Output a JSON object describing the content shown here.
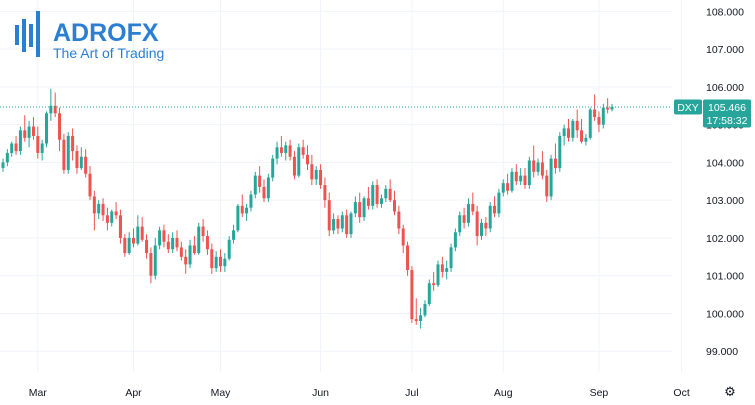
{
  "logo": {
    "wordmark": "ADROFX",
    "tagline": "The Art of Trading"
  },
  "colors": {
    "up": "#26a69a",
    "down": "#ef5350",
    "grid": "#f0f3fa",
    "last_price_line": "#26a69a",
    "logo": "#2a7fd4"
  },
  "settings_icon": "gear-icon",
  "price_badge": {
    "symbol": "DXY",
    "price": "105.466",
    "countdown": "17:58:32"
  },
  "chart_data": {
    "type": "candlestick",
    "title": "",
    "xlabel": "",
    "ylabel": "",
    "y_axis_position": "right",
    "ylim": [
      98.45,
      108.3
    ],
    "y_ticks": [
      99.0,
      100.0,
      101.0,
      102.0,
      103.0,
      104.0,
      105.0,
      106.0,
      107.0,
      108.0
    ],
    "y_tick_labels": [
      "99.000",
      "100.000",
      "101.000",
      "102.000",
      "103.000",
      "104.000",
      "105.000",
      "106.000",
      "107.000",
      "108.000"
    ],
    "x_months": [
      {
        "label": "Mar",
        "index": 8
      },
      {
        "label": "Apr",
        "index": 30
      },
      {
        "label": "May",
        "index": 50
      },
      {
        "label": "Jun",
        "index": 73
      },
      {
        "label": "Jul",
        "index": 94
      },
      {
        "label": "Aug",
        "index": 115
      },
      {
        "label": "Sep",
        "index": 137
      },
      {
        "label": "Oct",
        "index": 156
      }
    ],
    "grid": true,
    "last_price": 105.466,
    "candles": [
      [
        103.85,
        104.1,
        103.75,
        104.0
      ],
      [
        104.0,
        104.35,
        103.9,
        104.25
      ],
      [
        104.25,
        104.55,
        104.15,
        104.5
      ],
      [
        104.5,
        104.7,
        104.2,
        104.3
      ],
      [
        104.3,
        104.95,
        104.2,
        104.85
      ],
      [
        104.85,
        105.25,
        104.55,
        104.65
      ],
      [
        104.65,
        105.1,
        104.4,
        104.95
      ],
      [
        104.95,
        105.2,
        104.6,
        104.7
      ],
      [
        104.7,
        104.95,
        104.1,
        104.25
      ],
      [
        104.25,
        104.6,
        104.05,
        104.5
      ],
      [
        104.5,
        105.35,
        104.4,
        105.3
      ],
      [
        105.3,
        105.95,
        105.1,
        105.5
      ],
      [
        105.5,
        105.85,
        105.2,
        105.3
      ],
      [
        105.3,
        105.45,
        104.3,
        104.6
      ],
      [
        104.6,
        104.75,
        103.7,
        103.8
      ],
      [
        103.8,
        104.8,
        103.7,
        104.7
      ],
      [
        104.7,
        104.9,
        104.05,
        104.3
      ],
      [
        104.3,
        104.45,
        103.7,
        103.85
      ],
      [
        103.85,
        104.4,
        103.8,
        104.15
      ],
      [
        104.15,
        104.35,
        103.6,
        103.7
      ],
      [
        103.7,
        103.9,
        103.0,
        103.1
      ],
      [
        103.1,
        103.25,
        102.2,
        102.65
      ],
      [
        102.65,
        103.0,
        102.5,
        102.9
      ],
      [
        102.9,
        103.05,
        102.45,
        102.6
      ],
      [
        102.6,
        102.8,
        102.2,
        102.4
      ],
      [
        102.4,
        102.75,
        102.3,
        102.7
      ],
      [
        102.7,
        102.95,
        102.5,
        102.6
      ],
      [
        102.6,
        102.75,
        101.85,
        102.0
      ],
      [
        102.0,
        102.1,
        101.5,
        101.6
      ],
      [
        101.6,
        102.15,
        101.55,
        102.0
      ],
      [
        102.0,
        102.25,
        101.75,
        101.85
      ],
      [
        101.85,
        102.6,
        101.8,
        102.3
      ],
      [
        102.3,
        102.55,
        101.9,
        101.95
      ],
      [
        101.95,
        102.1,
        101.45,
        101.6
      ],
      [
        101.6,
        101.75,
        100.8,
        101.0
      ],
      [
        101.0,
        102.0,
        100.9,
        101.8
      ],
      [
        101.8,
        102.3,
        101.7,
        102.2
      ],
      [
        102.2,
        102.35,
        101.75,
        101.9
      ],
      [
        101.9,
        102.1,
        101.6,
        101.7
      ],
      [
        101.7,
        102.15,
        101.6,
        102.0
      ],
      [
        102.0,
        102.2,
        101.65,
        101.75
      ],
      [
        101.75,
        101.9,
        101.4,
        101.5
      ],
      [
        101.5,
        101.7,
        101.05,
        101.3
      ],
      [
        101.3,
        101.95,
        101.2,
        101.8
      ],
      [
        101.8,
        102.05,
        101.55,
        101.6
      ],
      [
        101.6,
        102.4,
        101.55,
        102.3
      ],
      [
        102.3,
        102.5,
        101.9,
        102.05
      ],
      [
        102.05,
        102.2,
        101.55,
        101.7
      ],
      [
        101.7,
        101.85,
        101.05,
        101.2
      ],
      [
        101.2,
        101.65,
        101.1,
        101.5
      ],
      [
        101.5,
        101.7,
        101.1,
        101.25
      ],
      [
        101.25,
        101.6,
        101.1,
        101.45
      ],
      [
        101.45,
        102.05,
        101.4,
        101.95
      ],
      [
        101.95,
        102.35,
        101.85,
        102.2
      ],
      [
        102.2,
        102.9,
        102.15,
        102.85
      ],
      [
        102.85,
        103.15,
        102.55,
        102.65
      ],
      [
        102.65,
        102.9,
        102.45,
        102.8
      ],
      [
        102.8,
        103.25,
        102.7,
        103.15
      ],
      [
        103.15,
        103.75,
        103.05,
        103.65
      ],
      [
        103.65,
        103.9,
        103.2,
        103.35
      ],
      [
        103.35,
        103.55,
        102.95,
        103.05
      ],
      [
        103.05,
        103.7,
        102.95,
        103.6
      ],
      [
        103.6,
        104.2,
        103.5,
        104.1
      ],
      [
        104.1,
        104.55,
        103.95,
        104.4
      ],
      [
        104.4,
        104.7,
        104.15,
        104.25
      ],
      [
        104.25,
        104.55,
        104.05,
        104.45
      ],
      [
        104.45,
        104.6,
        104.05,
        104.15
      ],
      [
        104.15,
        104.3,
        103.55,
        103.65
      ],
      [
        103.65,
        104.5,
        103.6,
        104.4
      ],
      [
        104.4,
        104.6,
        104.1,
        104.2
      ],
      [
        104.2,
        104.45,
        103.8,
        103.95
      ],
      [
        103.95,
        104.2,
        103.4,
        103.55
      ],
      [
        103.55,
        103.9,
        103.4,
        103.8
      ],
      [
        103.8,
        103.95,
        103.3,
        103.4
      ],
      [
        103.4,
        103.6,
        102.8,
        103.0
      ],
      [
        103.0,
        103.2,
        102.05,
        102.2
      ],
      [
        102.2,
        102.65,
        102.1,
        102.5
      ],
      [
        102.5,
        102.6,
        102.1,
        102.25
      ],
      [
        102.25,
        102.7,
        102.15,
        102.6
      ],
      [
        102.6,
        102.75,
        102.0,
        102.1
      ],
      [
        102.1,
        102.7,
        102.0,
        102.65
      ],
      [
        102.65,
        103.1,
        102.55,
        102.95
      ],
      [
        102.95,
        103.2,
        102.4,
        102.55
      ],
      [
        102.55,
        103.1,
        102.45,
        103.05
      ],
      [
        103.05,
        103.35,
        102.75,
        102.85
      ],
      [
        102.85,
        103.5,
        102.75,
        103.4
      ],
      [
        103.4,
        103.55,
        102.8,
        102.9
      ],
      [
        102.9,
        103.15,
        102.8,
        103.05
      ],
      [
        103.05,
        103.4,
        102.95,
        103.3
      ],
      [
        103.3,
        103.55,
        102.95,
        103.0
      ],
      [
        103.0,
        103.25,
        102.6,
        102.7
      ],
      [
        102.7,
        102.85,
        102.1,
        102.25
      ],
      [
        102.25,
        102.35,
        101.6,
        101.8
      ],
      [
        101.8,
        101.9,
        101.0,
        101.15
      ],
      [
        101.15,
        101.25,
        99.75,
        99.85
      ],
      [
        99.85,
        100.4,
        99.7,
        99.8
      ],
      [
        99.8,
        100.15,
        99.6,
        99.95
      ],
      [
        99.95,
        100.35,
        99.9,
        100.25
      ],
      [
        100.25,
        100.9,
        100.2,
        100.8
      ],
      [
        100.8,
        101.1,
        100.6,
        100.75
      ],
      [
        100.75,
        101.4,
        100.7,
        101.3
      ],
      [
        101.3,
        101.5,
        100.95,
        101.1
      ],
      [
        101.1,
        101.4,
        100.9,
        101.2
      ],
      [
        101.2,
        101.85,
        101.1,
        101.75
      ],
      [
        101.75,
        102.25,
        101.65,
        102.15
      ],
      [
        102.15,
        102.7,
        102.05,
        102.6
      ],
      [
        102.6,
        102.8,
        102.25,
        102.4
      ],
      [
        102.4,
        103.05,
        102.3,
        102.9
      ],
      [
        102.9,
        103.2,
        102.6,
        102.7
      ],
      [
        102.7,
        102.85,
        101.8,
        102.05
      ],
      [
        102.05,
        102.5,
        101.95,
        102.4
      ],
      [
        102.4,
        102.55,
        102.05,
        102.25
      ],
      [
        102.25,
        102.95,
        102.15,
        102.85
      ],
      [
        102.85,
        103.1,
        102.55,
        102.65
      ],
      [
        102.65,
        103.3,
        102.55,
        103.2
      ],
      [
        103.2,
        103.55,
        103.1,
        103.45
      ],
      [
        103.45,
        103.7,
        103.15,
        103.25
      ],
      [
        103.25,
        103.85,
        103.2,
        103.75
      ],
      [
        103.75,
        103.95,
        103.4,
        103.5
      ],
      [
        103.5,
        103.85,
        103.4,
        103.65
      ],
      [
        103.65,
        103.85,
        103.3,
        103.4
      ],
      [
        103.4,
        104.15,
        103.3,
        104.05
      ],
      [
        104.05,
        104.45,
        103.6,
        103.75
      ],
      [
        103.75,
        104.1,
        103.65,
        104.0
      ],
      [
        104.0,
        104.3,
        103.55,
        103.65
      ],
      [
        103.65,
        103.8,
        102.95,
        103.1
      ],
      [
        103.1,
        104.2,
        103.0,
        104.1
      ],
      [
        104.1,
        104.5,
        103.7,
        103.85
      ],
      [
        103.85,
        104.8,
        103.75,
        104.7
      ],
      [
        104.7,
        105.0,
        104.45,
        104.9
      ],
      [
        104.9,
        105.15,
        104.55,
        104.65
      ],
      [
        104.65,
        105.15,
        104.55,
        105.1
      ],
      [
        105.1,
        105.4,
        104.65,
        104.85
      ],
      [
        104.85,
        105.15,
        104.5,
        104.55
      ],
      [
        104.55,
        104.75,
        104.45,
        104.65
      ],
      [
        104.65,
        105.45,
        104.6,
        105.4
      ],
      [
        105.4,
        105.8,
        105.1,
        105.2
      ],
      [
        105.2,
        105.35,
        104.8,
        105.0
      ],
      [
        105.0,
        105.55,
        104.9,
        105.45
      ],
      [
        105.45,
        105.7,
        105.3,
        105.4
      ],
      [
        105.4,
        105.55,
        105.35,
        105.47
      ]
    ]
  }
}
